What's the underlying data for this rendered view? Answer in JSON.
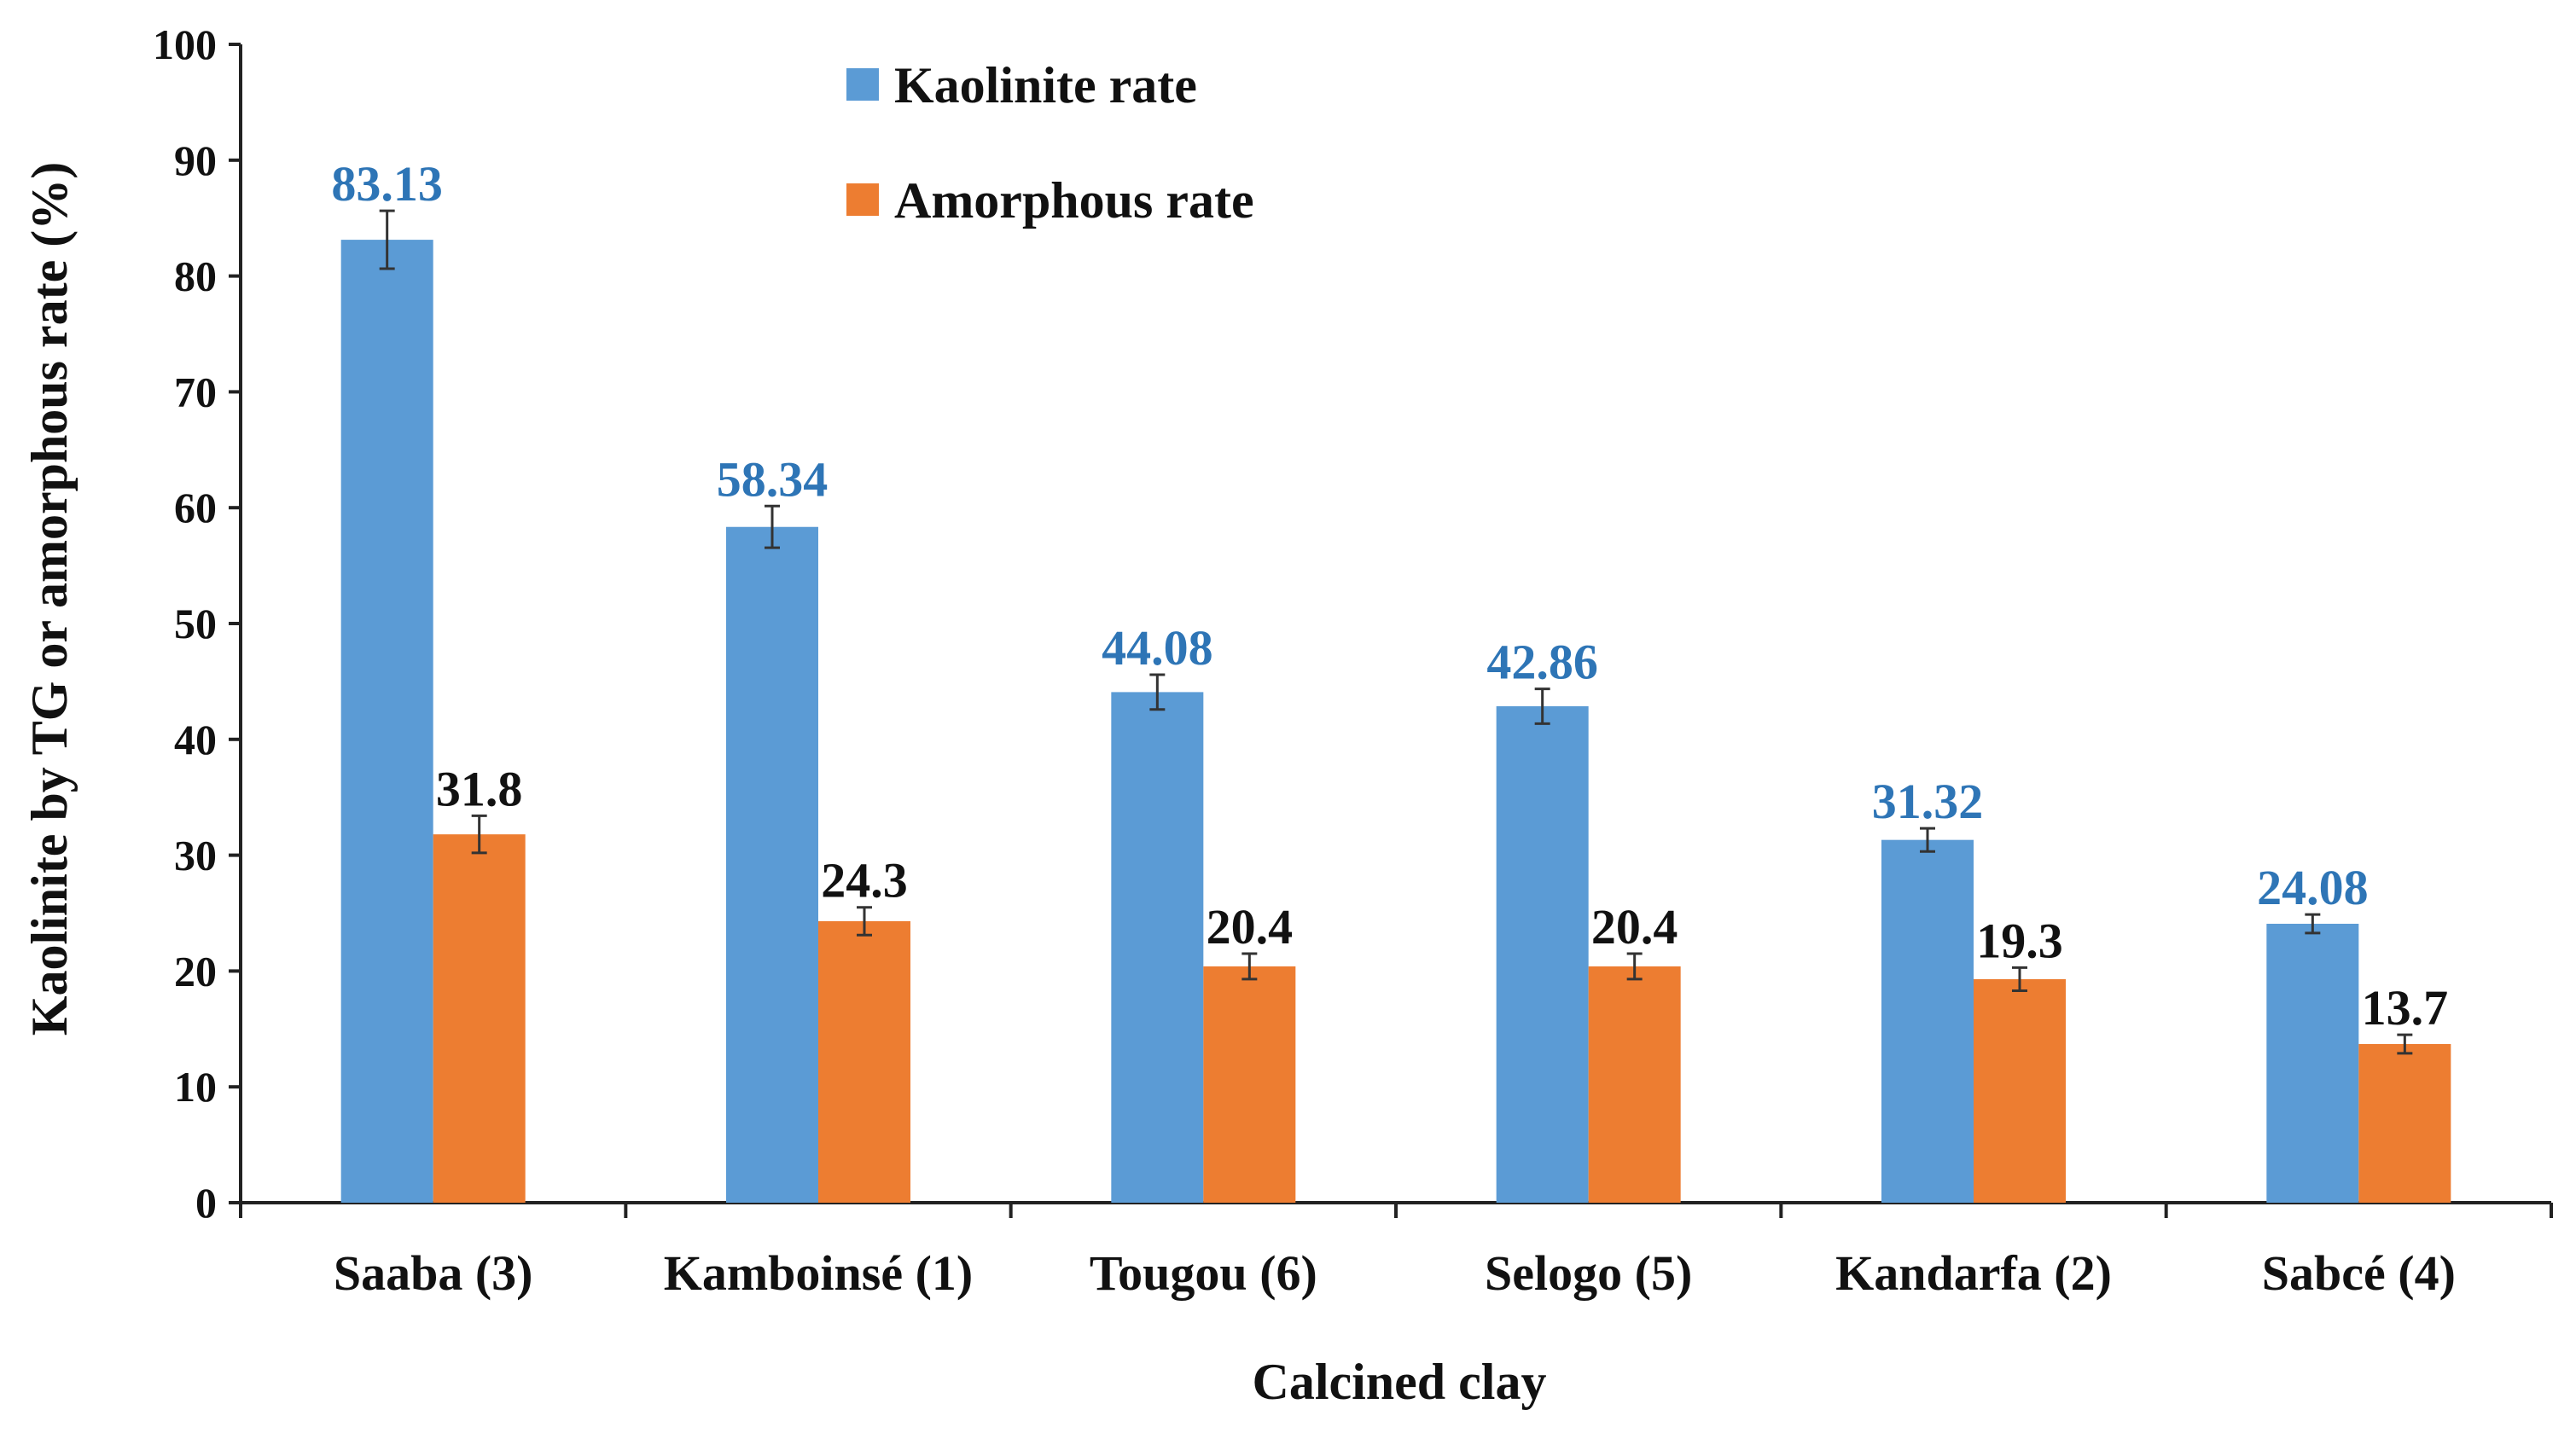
{
  "chart_data": {
    "type": "bar",
    "title": "",
    "xlabel": "Calcined clay",
    "ylabel": "Kaolinite by TG  or amorphous rate (%)",
    "ylim": [
      0,
      100
    ],
    "yticks": [
      0,
      10,
      20,
      30,
      40,
      50,
      60,
      70,
      80,
      90,
      100
    ],
    "ytick_labels": [
      "0",
      "10",
      "20",
      "30",
      "40",
      "50",
      "60",
      "70",
      "80",
      "90",
      "100"
    ],
    "grid": false,
    "legend_position": "top-center",
    "categories": [
      "Saaba (3)",
      "Kamboinsé (1)",
      "Tougou (6)",
      "Selogo (5)",
      "Kandarfa (2)",
      "Sabcé (4)"
    ],
    "series": [
      {
        "name": "Kaolinite rate",
        "color": "#5B9BD5",
        "label_color": "#2E75B6",
        "values": [
          83.13,
          58.34,
          44.08,
          42.86,
          31.32,
          24.08
        ],
        "labels": [
          "83.13",
          "58.34",
          "44.08",
          "42.86",
          "31.32",
          "24.08"
        ],
        "errors": [
          2.5,
          1.8,
          1.5,
          1.5,
          1.0,
          0.8
        ]
      },
      {
        "name": "Amorphous rate",
        "color": "#ED7D31",
        "label_color": "#111111",
        "values": [
          31.8,
          24.3,
          20.4,
          20.4,
          19.3,
          13.7
        ],
        "labels": [
          "31.8",
          "24.3",
          "20.4",
          "20.4",
          "19.3",
          "13.7"
        ],
        "errors": [
          1.6,
          1.2,
          1.1,
          1.1,
          1.0,
          0.8
        ]
      }
    ]
  }
}
